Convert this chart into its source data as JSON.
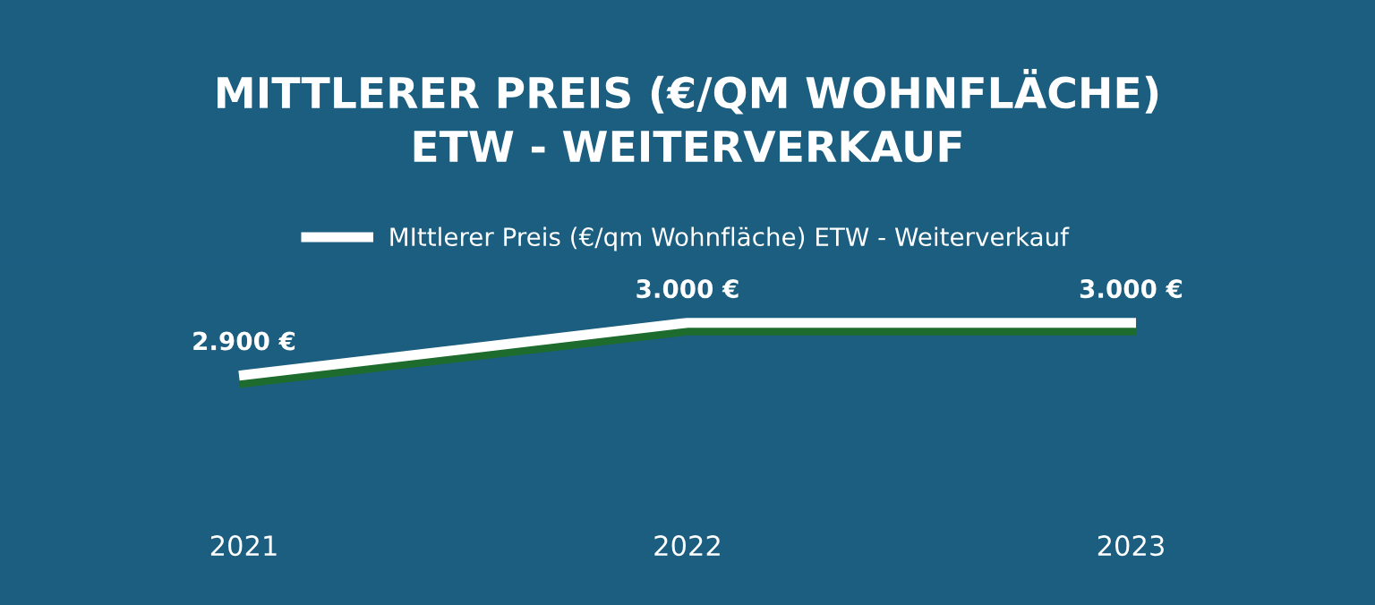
{
  "chart_data": {
    "type": "line",
    "title": "MITTLERER PREIS (€/QM WOHNFLÄCHE)\nETW - WEITERVERKAUF",
    "categories": [
      "2021",
      "2022",
      "2023"
    ],
    "series": [
      {
        "name": "MIttlerer Preis (€/qm Wohnfläche) ETW - Weiterverkauf",
        "color": "#ffffff",
        "values": [
          2900,
          3000,
          3000
        ],
        "value_labels": [
          "2.900 €",
          "3.000 €",
          "3.000 €"
        ]
      }
    ],
    "legend": "top",
    "grid": false,
    "line_style": "solid"
  }
}
